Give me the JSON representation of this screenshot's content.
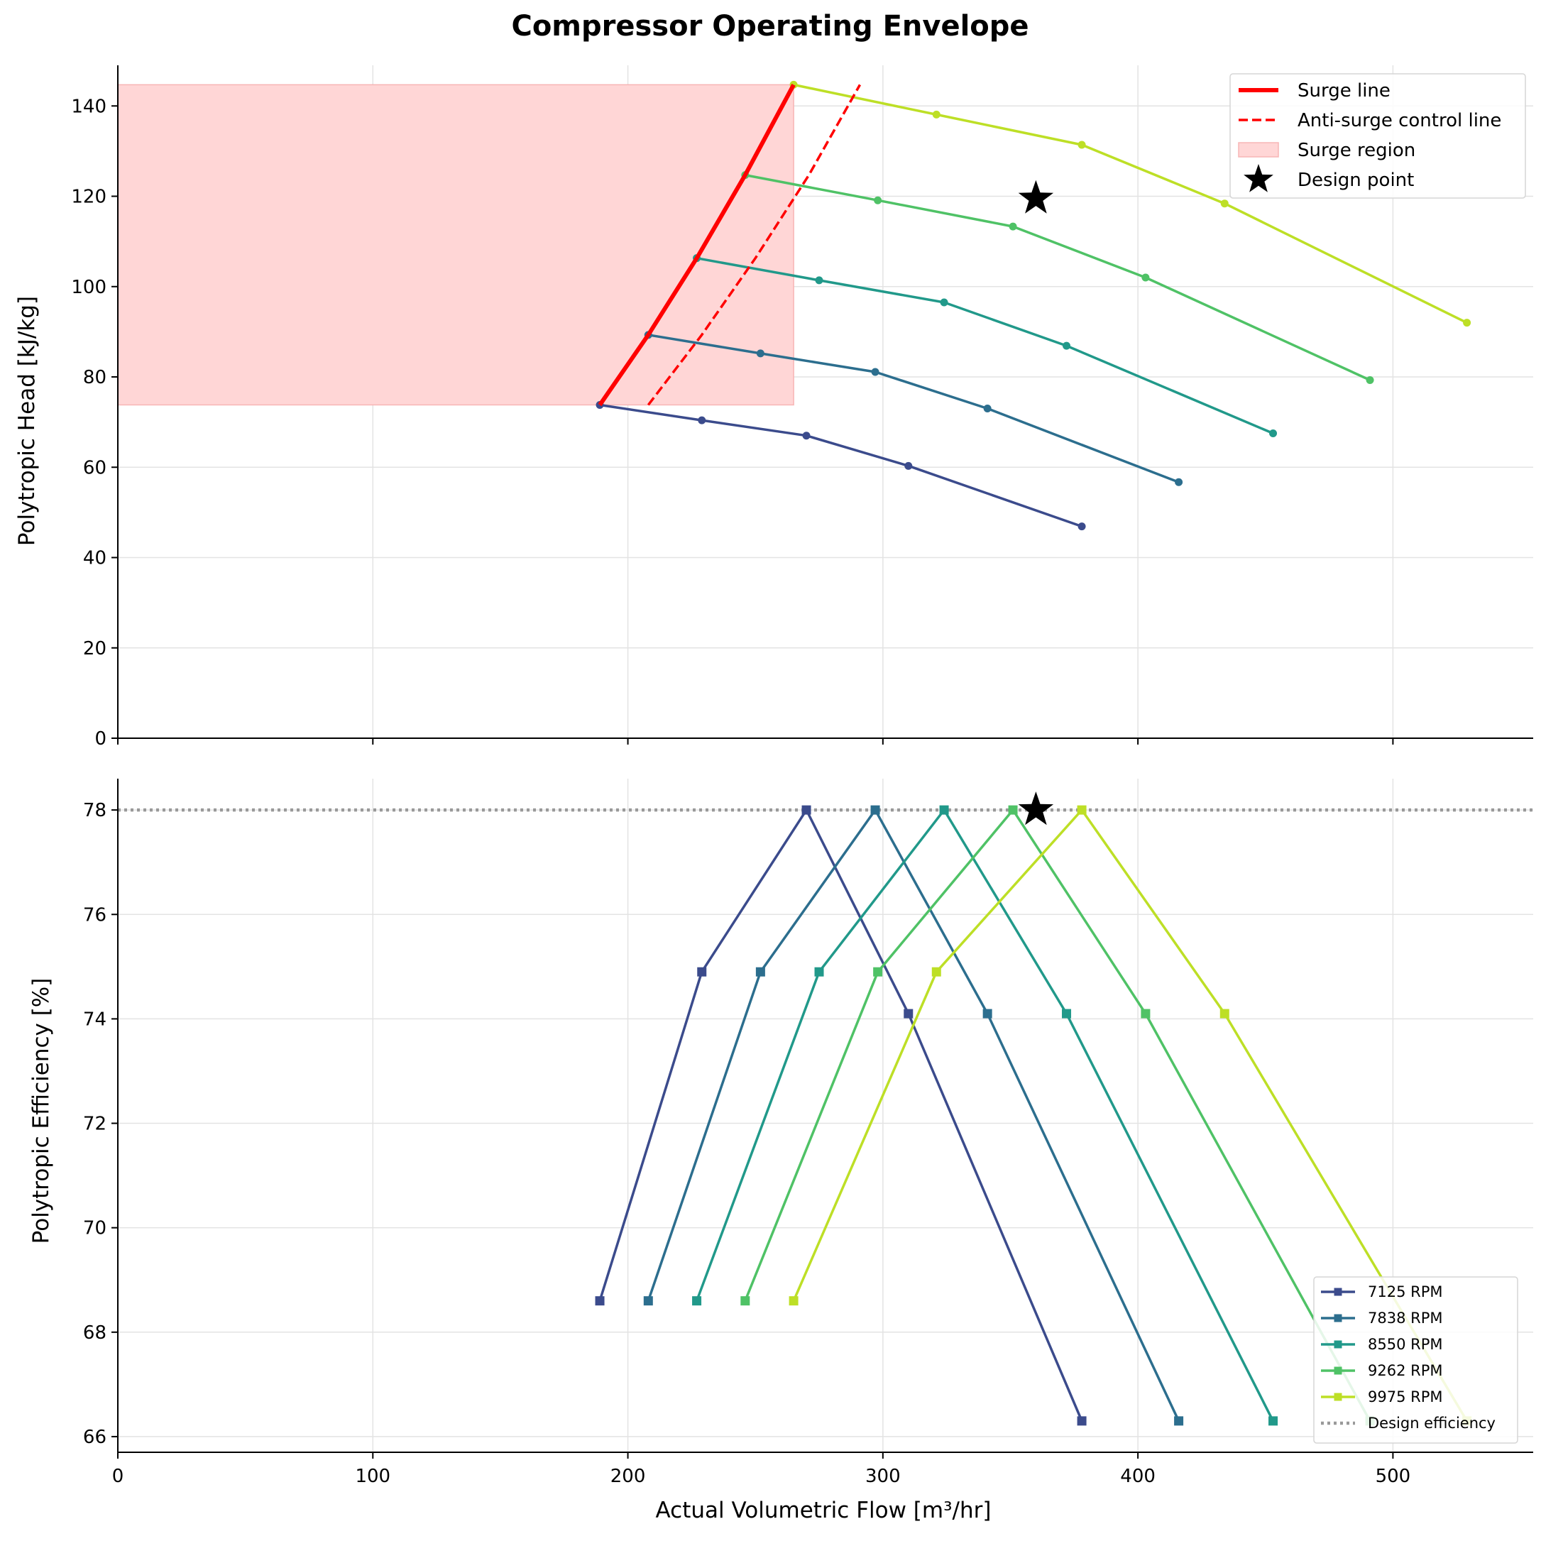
{
  "chart_data": [
    {
      "type": "line",
      "title": "Compressor Operating Envelope",
      "xlabel": "",
      "ylabel": "Polytropic Head [kJ/kg]",
      "xlim": [
        0,
        555
      ],
      "ylim": [
        0,
        149
      ],
      "xticks": [
        0,
        100,
        200,
        300,
        400,
        500
      ],
      "yticks": [
        0,
        20,
        40,
        60,
        80,
        100,
        120,
        140
      ],
      "grid": true,
      "legend_position": "top-right",
      "series": [
        {
          "name": "7125 RPM",
          "color": "#3b4b8c",
          "x": [
            189,
            229,
            270,
            310,
            378
          ],
          "y": [
            73.8,
            70.4,
            67.0,
            60.3,
            46.9
          ]
        },
        {
          "name": "7838 RPM",
          "color": "#2c6e8e",
          "x": [
            208,
            252,
            297,
            341,
            416
          ],
          "y": [
            89.3,
            85.2,
            81.1,
            73.0,
            56.7
          ]
        },
        {
          "name": "8550 RPM",
          "color": "#21998a",
          "x": [
            227,
            275,
            324,
            372,
            453
          ],
          "y": [
            106.3,
            101.4,
            96.5,
            86.9,
            67.5
          ]
        },
        {
          "name": "9262 RPM",
          "color": "#4fc266",
          "x": [
            246,
            298,
            351,
            403,
            491
          ],
          "y": [
            124.7,
            119.1,
            113.3,
            102.0,
            79.3
          ]
        },
        {
          "name": "9975 RPM",
          "color": "#bddf26",
          "x": [
            265,
            321,
            378,
            434,
            529
          ],
          "y": [
            144.7,
            138.1,
            131.4,
            118.4,
            92.0
          ]
        }
      ],
      "surge_line": {
        "name": "Surge line",
        "color": "#ff0000",
        "x": [
          189,
          208,
          227,
          246,
          265
        ],
        "y": [
          73.8,
          89.3,
          106.3,
          124.7,
          144.7
        ]
      },
      "anti_surge_line": {
        "name": "Anti-surge control line",
        "color": "#ff0000",
        "x": [
          208,
          229,
          250,
          271,
          291
        ],
        "y": [
          73.8,
          89.3,
          106.3,
          124.7,
          144.7
        ]
      },
      "surge_region": {
        "name": "Surge region",
        "color": "#ffd6d6",
        "x_range": [
          0,
          265
        ],
        "y_range": [
          73.8,
          144.7
        ]
      },
      "design_point": {
        "name": "Design point",
        "x": 360,
        "y": 119.5
      }
    },
    {
      "type": "line",
      "title": "",
      "xlabel": "Actual Volumetric Flow [m³/hr]",
      "ylabel": "Polytropic Efficiency [%]",
      "xlim": [
        0,
        555
      ],
      "ylim": [
        65.7,
        78.6
      ],
      "xticks": [
        0,
        100,
        200,
        300,
        400,
        500
      ],
      "yticks": [
        66,
        68,
        70,
        72,
        74,
        76,
        78
      ],
      "grid": true,
      "legend_position": "bottom-right",
      "series": [
        {
          "name": "7125 RPM",
          "color": "#3b4b8c",
          "x": [
            189,
            229,
            270,
            310,
            378
          ],
          "y": [
            68.6,
            74.9,
            78.0,
            74.1,
            66.3
          ]
        },
        {
          "name": "7838 RPM",
          "color": "#2c6e8e",
          "x": [
            208,
            252,
            297,
            341,
            416
          ],
          "y": [
            68.6,
            74.9,
            78.0,
            74.1,
            66.3
          ]
        },
        {
          "name": "8550 RPM",
          "color": "#21998a",
          "x": [
            227,
            275,
            324,
            372,
            453
          ],
          "y": [
            68.6,
            74.9,
            78.0,
            74.1,
            66.3
          ]
        },
        {
          "name": "9262 RPM",
          "color": "#4fc266",
          "x": [
            246,
            298,
            351,
            403,
            491
          ],
          "y": [
            68.6,
            74.9,
            78.0,
            74.1,
            66.3
          ]
        },
        {
          "name": "9975 RPM",
          "color": "#bddf26",
          "x": [
            265,
            321,
            378,
            434,
            529
          ],
          "y": [
            68.6,
            74.9,
            78.0,
            74.1,
            66.3
          ]
        }
      ],
      "design_efficiency": {
        "name": "Design efficiency",
        "y": 78.0,
        "color": "#999999"
      },
      "design_point": {
        "x": 360,
        "y": 78.0
      }
    }
  ]
}
